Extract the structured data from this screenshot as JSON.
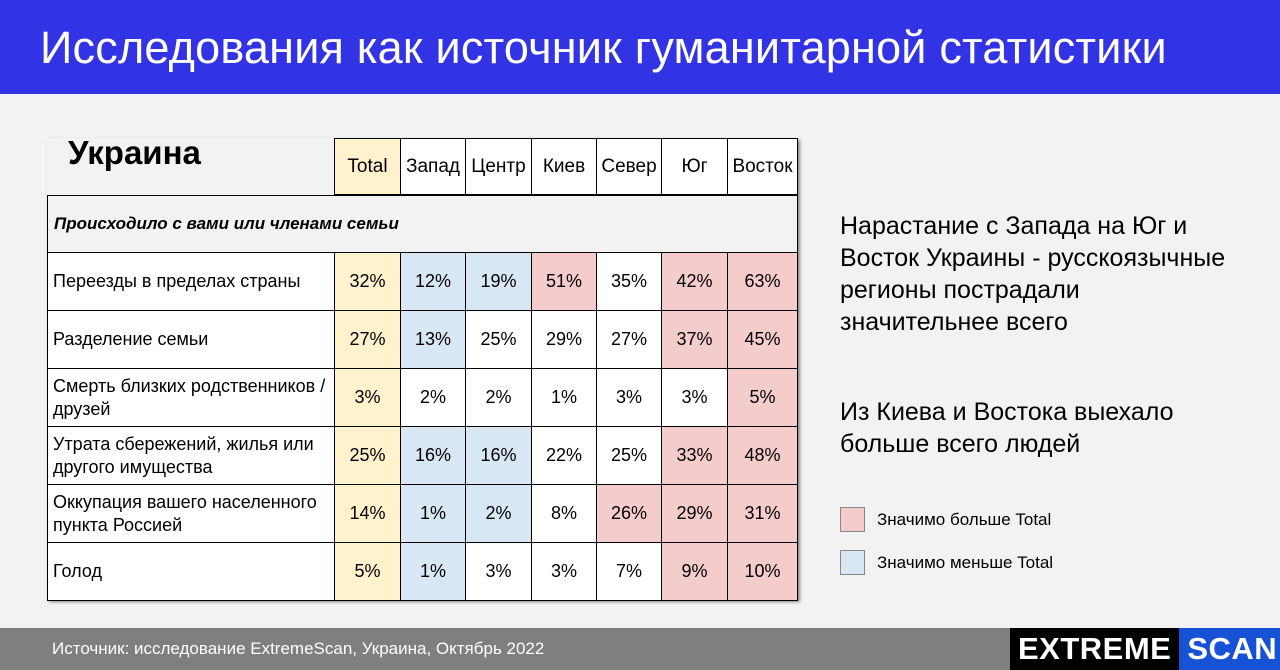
{
  "title": "Исследования как источник гуманитарной статистики",
  "chart_data": {
    "type": "table",
    "title": "Украина",
    "section": "Происходило с вами или членами семьи",
    "columns": [
      "Total",
      "Запад",
      "Центр",
      "Киев",
      "Север",
      "Юг",
      "Восток"
    ],
    "rows": [
      {
        "label": "Переезды в пределах страны",
        "values": [
          "32%",
          "12%",
          "19%",
          "51%",
          "35%",
          "42%",
          "63%"
        ],
        "sig": [
          "",
          "lower",
          "lower",
          "higher",
          "",
          "higher",
          "higher"
        ]
      },
      {
        "label": "Разделение семьи",
        "values": [
          "27%",
          "13%",
          "25%",
          "29%",
          "27%",
          "37%",
          "45%"
        ],
        "sig": [
          "",
          "lower",
          "",
          "",
          "",
          "higher",
          "higher"
        ]
      },
      {
        "label": "Смерть близких родственников / друзей",
        "values": [
          "3%",
          "2%",
          "2%",
          "1%",
          "3%",
          "3%",
          "5%"
        ],
        "sig": [
          "",
          "",
          "",
          "",
          "",
          "",
          "higher"
        ]
      },
      {
        "label": "Утрата сбережений, жилья или другого имущества",
        "values": [
          "25%",
          "16%",
          "16%",
          "22%",
          "25%",
          "33%",
          "48%"
        ],
        "sig": [
          "",
          "lower",
          "lower",
          "",
          "",
          "higher",
          "higher"
        ]
      },
      {
        "label": "Оккупация вашего населенного пункта Россией",
        "values": [
          "14%",
          "1%",
          "2%",
          "8%",
          "26%",
          "29%",
          "31%"
        ],
        "sig": [
          "",
          "lower",
          "lower",
          "",
          "higher",
          "higher",
          "higher"
        ]
      },
      {
        "label": "Голод",
        "values": [
          "5%",
          "1%",
          "3%",
          "3%",
          "7%",
          "9%",
          "10%"
        ],
        "sig": [
          "",
          "lower",
          "",
          "",
          "",
          "higher",
          "higher"
        ]
      }
    ]
  },
  "notes": [
    "Нарастание с Запада на Юг и Восток Украины - русскоязычные регионы пострадали значительнее всего",
    "Из Киева и Востока выехало больше всего людей"
  ],
  "legend": [
    {
      "label": "Значимо больше Total",
      "color": "#f4cccc"
    },
    {
      "label": "Значимо меньше Total",
      "color": "#d9e7f5"
    }
  ],
  "colors": {
    "header": "#3333e6",
    "total": "#fff2cc",
    "higher": "#f4cccc",
    "lower": "#d9e7f5"
  },
  "footer": {
    "source": "Источник: исследование ExtremeScan, Украина,  Октябрь 2022",
    "logo_left": "EXTREME",
    "logo_right": "SCAN"
  }
}
